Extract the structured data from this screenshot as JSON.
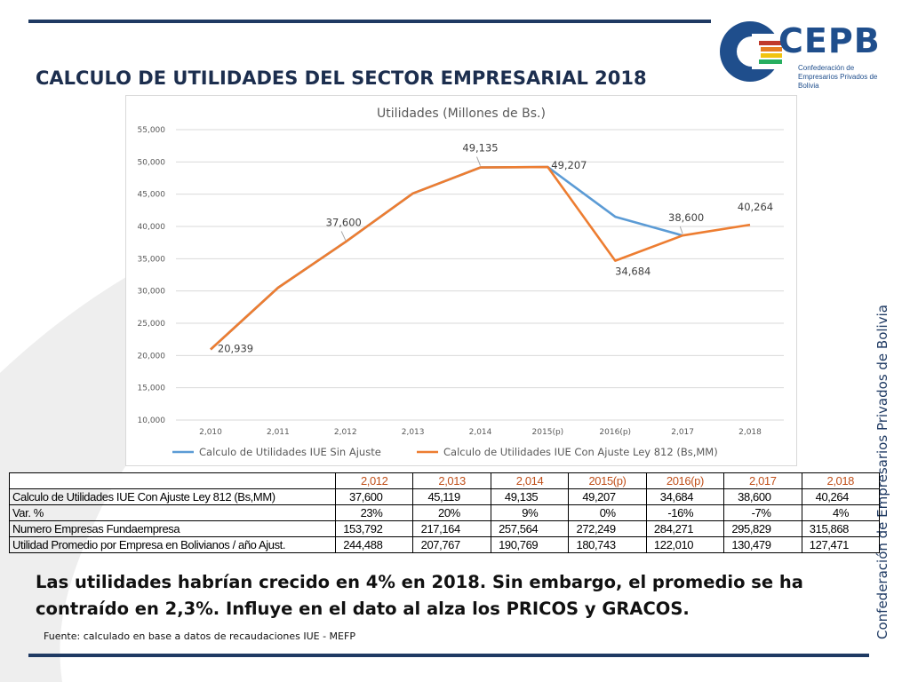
{
  "header": {
    "title": "CALCULO DE UTILIDADES DEL SECTOR EMPRESARIAL 2018"
  },
  "logo": {
    "word": "CEPB",
    "subtitle": "Confederación de Empresarios Privados de Bolivia",
    "colors": [
      "#1f4e8c",
      "#c0392b",
      "#e67e22",
      "#f1c40f",
      "#27ae60"
    ]
  },
  "side_text": "Confederación de Empresarios Privados de Bolivia",
  "chart_data": {
    "type": "line",
    "title": "Utilidades (Millones de Bs.)",
    "categories": [
      "2,010",
      "2,011",
      "2,012",
      "2,013",
      "2,014",
      "2015(p)",
      "2016(p)",
      "2,017",
      "2,018"
    ],
    "ylim": [
      10000,
      55000
    ],
    "yticks": [
      "10,000",
      "15,000",
      "20,000",
      "25,000",
      "30,000",
      "35,000",
      "40,000",
      "45,000",
      "50,000",
      "55,000"
    ],
    "ytick_values": [
      10000,
      15000,
      20000,
      25000,
      30000,
      35000,
      40000,
      45000,
      50000,
      55000
    ],
    "grid": true,
    "legend_position": "bottom",
    "series": [
      {
        "name": "Calculo de Utilidades IUE Sin Ajuste",
        "color": "#5b9bd5",
        "values": [
          20939,
          30500,
          37600,
          45119,
          49135,
          49207,
          41500,
          38600,
          null
        ]
      },
      {
        "name": "Calculo de Utilidades IUE Con Ajuste Ley 812 (Bs,MM)",
        "color": "#ed7d31",
        "values": [
          20939,
          30500,
          37600,
          45119,
          49135,
          49207,
          34684,
          38600,
          40264
        ]
      }
    ],
    "annotations": [
      {
        "text": "20,939",
        "category_index": 0,
        "value": 20939
      },
      {
        "text": "37,600",
        "category_index": 2,
        "value": 37600
      },
      {
        "text": "49,135",
        "category_index": 4,
        "value": 49135
      },
      {
        "text": "49,207",
        "category_index": 5,
        "value": 49207
      },
      {
        "text": "34,684",
        "category_index": 6,
        "value": 34684
      },
      {
        "text": "38,600",
        "category_index": 7,
        "value": 38600
      },
      {
        "text": "40,264",
        "category_index": 8,
        "value": 40264
      }
    ]
  },
  "table": {
    "header": [
      "",
      "2,012",
      "2,013",
      "2,014",
      "2015(p)",
      "2016(p)",
      "2,017",
      "2,018"
    ],
    "rows": [
      [
        "Calculo de Utilidades IUE Con Ajuste Ley 812 (Bs,MM)",
        "37,600",
        "45,119",
        "49,135",
        "49,207",
        "34,684",
        "38,600",
        "40,264"
      ],
      [
        "Var. %",
        "23%",
        "20%",
        "9%",
        "0%",
        "-16%",
        "-7%",
        "4%"
      ],
      [
        "Numero Empresas Fundaempresa",
        "153,792",
        "217,164",
        "257,564",
        "272,249",
        "284,271",
        "295,829",
        "315,868"
      ],
      [
        "Utilidad Promedio por Empresa en Bolivianos / año Ajust.",
        "244,488",
        "207,767",
        "190,769",
        "180,743",
        "122,010",
        "130,479",
        "127,471"
      ]
    ]
  },
  "conclusion": "Las utilidades habrían crecido en 4% en 2018. Sin embargo, el promedio se ha contraído en 2,3%. Influye en el dato al alza los PRICOS y GRACOS.",
  "source": "Fuente: calculado en base a datos de recaudaciones IUE - MEFP"
}
